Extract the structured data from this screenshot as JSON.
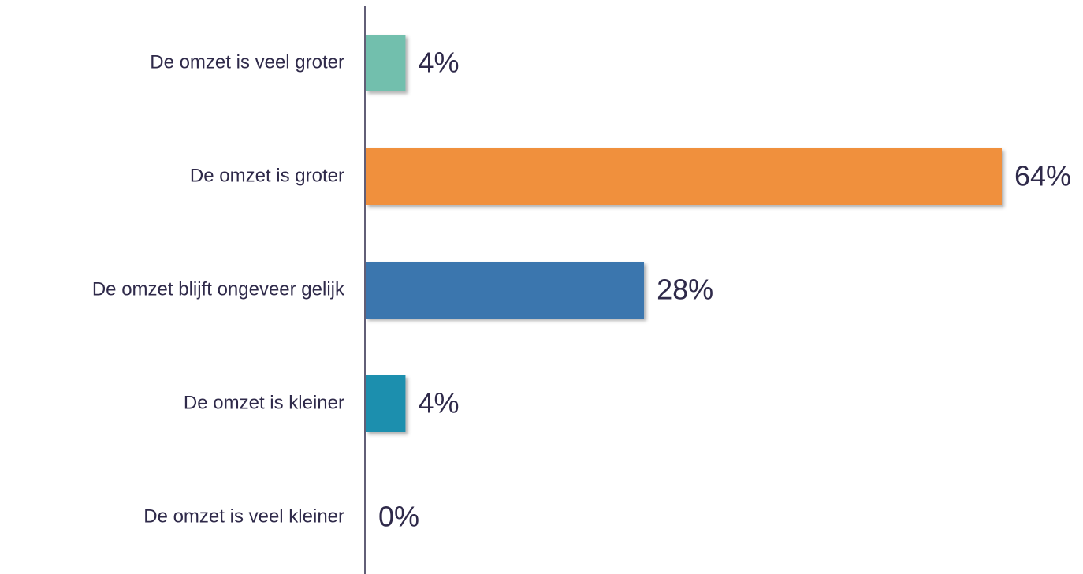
{
  "chart_data": {
    "type": "bar",
    "orientation": "horizontal",
    "categories": [
      "De omzet is veel groter",
      "De omzet is groter",
      "De omzet blijft ongeveer gelijk",
      "De omzet is kleiner",
      "De omzet is veel kleiner"
    ],
    "values": [
      4,
      64,
      28,
      4,
      0
    ],
    "value_labels": [
      "4%",
      "64%",
      "28%",
      "4%",
      "0%"
    ],
    "colors": [
      "#72bfad",
      "#f0903c",
      "#3b76ae",
      "#1f8fae",
      null
    ]
  }
}
